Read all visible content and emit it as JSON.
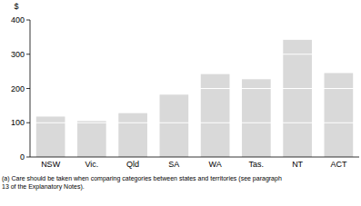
{
  "chart_data": {
    "type": "bar",
    "y_label": "$",
    "categories": [
      "NSW",
      "Vic.",
      "Qld",
      "SA",
      "WA",
      "Tas.",
      "NT",
      "ACT"
    ],
    "values": [
      118,
      105,
      128,
      182,
      242,
      227,
      342,
      245
    ],
    "color": "#d9d9d9",
    "ylim": [
      0,
      400
    ],
    "yticks": [
      0,
      100,
      200,
      300,
      400
    ],
    "grid": true,
    "annotations": [
      "(a) Care should be taken when comparing categories between states and territories (see paragraph",
      "13 of the Explanatory Notes)."
    ]
  }
}
